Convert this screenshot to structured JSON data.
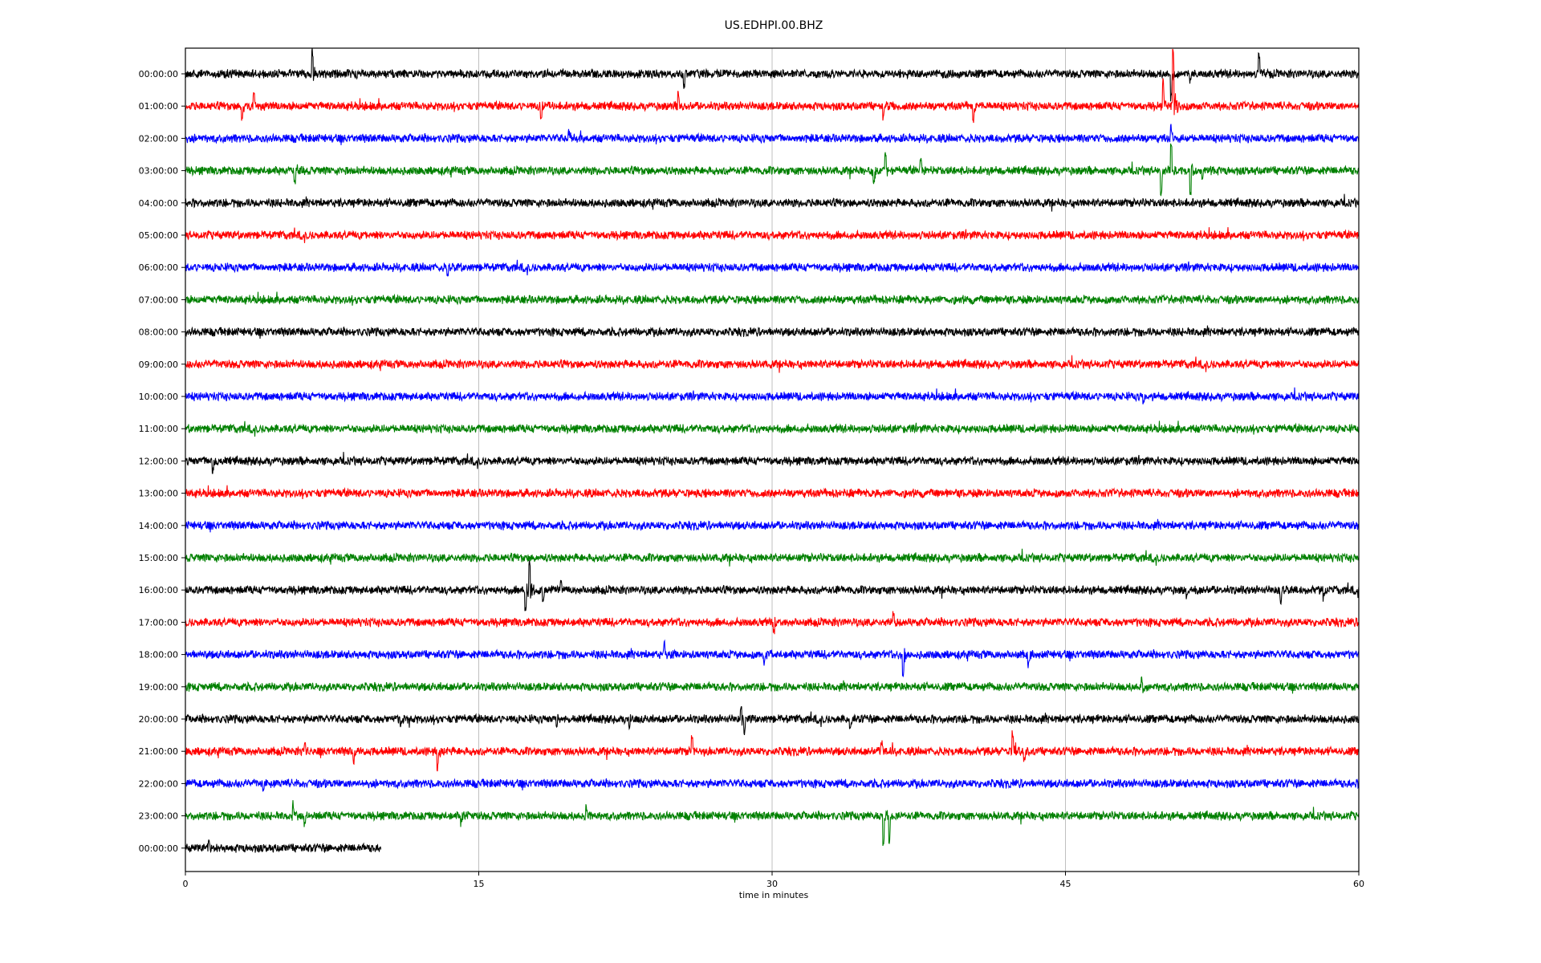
{
  "chart_data": {
    "type": "line",
    "title": "US.EDHPI.00.BHZ",
    "xlabel": "time in minutes",
    "ylabel": "",
    "xlim": [
      0,
      60
    ],
    "xticks": [
      "0",
      "15",
      "30",
      "45",
      "60"
    ],
    "xtick_values": [
      0,
      15,
      30,
      45,
      60
    ],
    "grid": "vertical at x ticks",
    "colors": [
      "#000000",
      "#ff0000",
      "#0000ff",
      "#008000"
    ],
    "rows": [
      {
        "label": "00:00:00",
        "end": 60,
        "events": [
          [
            6.5,
            -27
          ],
          [
            25.5,
            16
          ],
          [
            50.4,
            30
          ],
          [
            54.9,
            -24
          ],
          [
            51.4,
            8
          ]
        ]
      },
      {
        "label": "01:00:00",
        "end": 60,
        "events": [
          [
            2.9,
            15
          ],
          [
            3.5,
            -14
          ],
          [
            18.2,
            18
          ],
          [
            25.2,
            -18
          ],
          [
            35.7,
            15
          ],
          [
            40.3,
            18
          ],
          [
            50.0,
            -30
          ],
          [
            50.5,
            -72
          ]
        ]
      },
      {
        "label": "02:00:00",
        "end": 60,
        "events": [
          [
            19.6,
            -10
          ],
          [
            50.4,
            -14
          ]
        ]
      },
      {
        "label": "03:00:00",
        "end": 60,
        "events": [
          [
            5.6,
            17
          ],
          [
            35.2,
            15
          ],
          [
            35.8,
            -20
          ],
          [
            37.6,
            -14
          ],
          [
            49.9,
            28
          ],
          [
            50.4,
            -35
          ],
          [
            51.4,
            30
          ],
          [
            52.0,
            12
          ]
        ]
      },
      {
        "label": "04:00:00",
        "end": 60,
        "events": []
      },
      {
        "label": "05:00:00",
        "end": 60,
        "events": []
      },
      {
        "label": "06:00:00",
        "end": 60,
        "events": [
          [
            13.4,
            8
          ]
        ]
      },
      {
        "label": "07:00:00",
        "end": 60,
        "events": []
      },
      {
        "label": "08:00:00",
        "end": 60,
        "events": []
      },
      {
        "label": "09:00:00",
        "end": 60,
        "events": []
      },
      {
        "label": "10:00:00",
        "end": 60,
        "events": [
          [
            49.0,
            8
          ]
        ]
      },
      {
        "label": "11:00:00",
        "end": 60,
        "events": []
      },
      {
        "label": "12:00:00",
        "end": 60,
        "events": [
          [
            1.4,
            13
          ]
        ]
      },
      {
        "label": "13:00:00",
        "end": 60,
        "events": []
      },
      {
        "label": "14:00:00",
        "end": 60,
        "events": []
      },
      {
        "label": "15:00:00",
        "end": 60,
        "events": []
      },
      {
        "label": "16:00:00",
        "end": 60,
        "events": [
          [
            17.6,
            -36
          ],
          [
            17.4,
            24
          ],
          [
            18.3,
            14
          ],
          [
            19.2,
            -12
          ],
          [
            51.2,
            10
          ],
          [
            56.0,
            16
          ],
          [
            58.2,
            10
          ]
        ]
      },
      {
        "label": "17:00:00",
        "end": 60,
        "events": [
          [
            30.1,
            12
          ],
          [
            36.2,
            -12
          ]
        ]
      },
      {
        "label": "18:00:00",
        "end": 60,
        "events": [
          [
            24.5,
            -14
          ],
          [
            29.6,
            10
          ],
          [
            36.7,
            28
          ],
          [
            43.1,
            12
          ]
        ]
      },
      {
        "label": "19:00:00",
        "end": 60,
        "events": [
          [
            48.9,
            -12
          ]
        ]
      },
      {
        "label": "20:00:00",
        "end": 60,
        "events": [
          [
            11.0,
            8
          ],
          [
            19.0,
            12
          ],
          [
            22.7,
            12
          ],
          [
            28.6,
            18
          ],
          [
            34.0,
            14
          ],
          [
            28.4,
            -16
          ]
        ]
      },
      {
        "label": "21:00:00",
        "end": 60,
        "events": [
          [
            6.1,
            -10
          ],
          [
            8.6,
            14
          ],
          [
            12.9,
            20
          ],
          [
            25.9,
            -18
          ],
          [
            35.6,
            -12
          ],
          [
            42.3,
            -22
          ],
          [
            42.9,
            10
          ]
        ]
      },
      {
        "label": "22:00:00",
        "end": 60,
        "events": [
          [
            4.0,
            10
          ]
        ]
      },
      {
        "label": "23:00:00",
        "end": 60,
        "events": [
          [
            5.5,
            -15
          ],
          [
            6.1,
            10
          ],
          [
            20.5,
            -10
          ],
          [
            35.7,
            36
          ],
          [
            36.0,
            30
          ],
          [
            14.1,
            8
          ]
        ]
      },
      {
        "label": "00:00:00",
        "end": 10,
        "events": [
          [
            1.2,
            -12
          ]
        ]
      }
    ]
  }
}
